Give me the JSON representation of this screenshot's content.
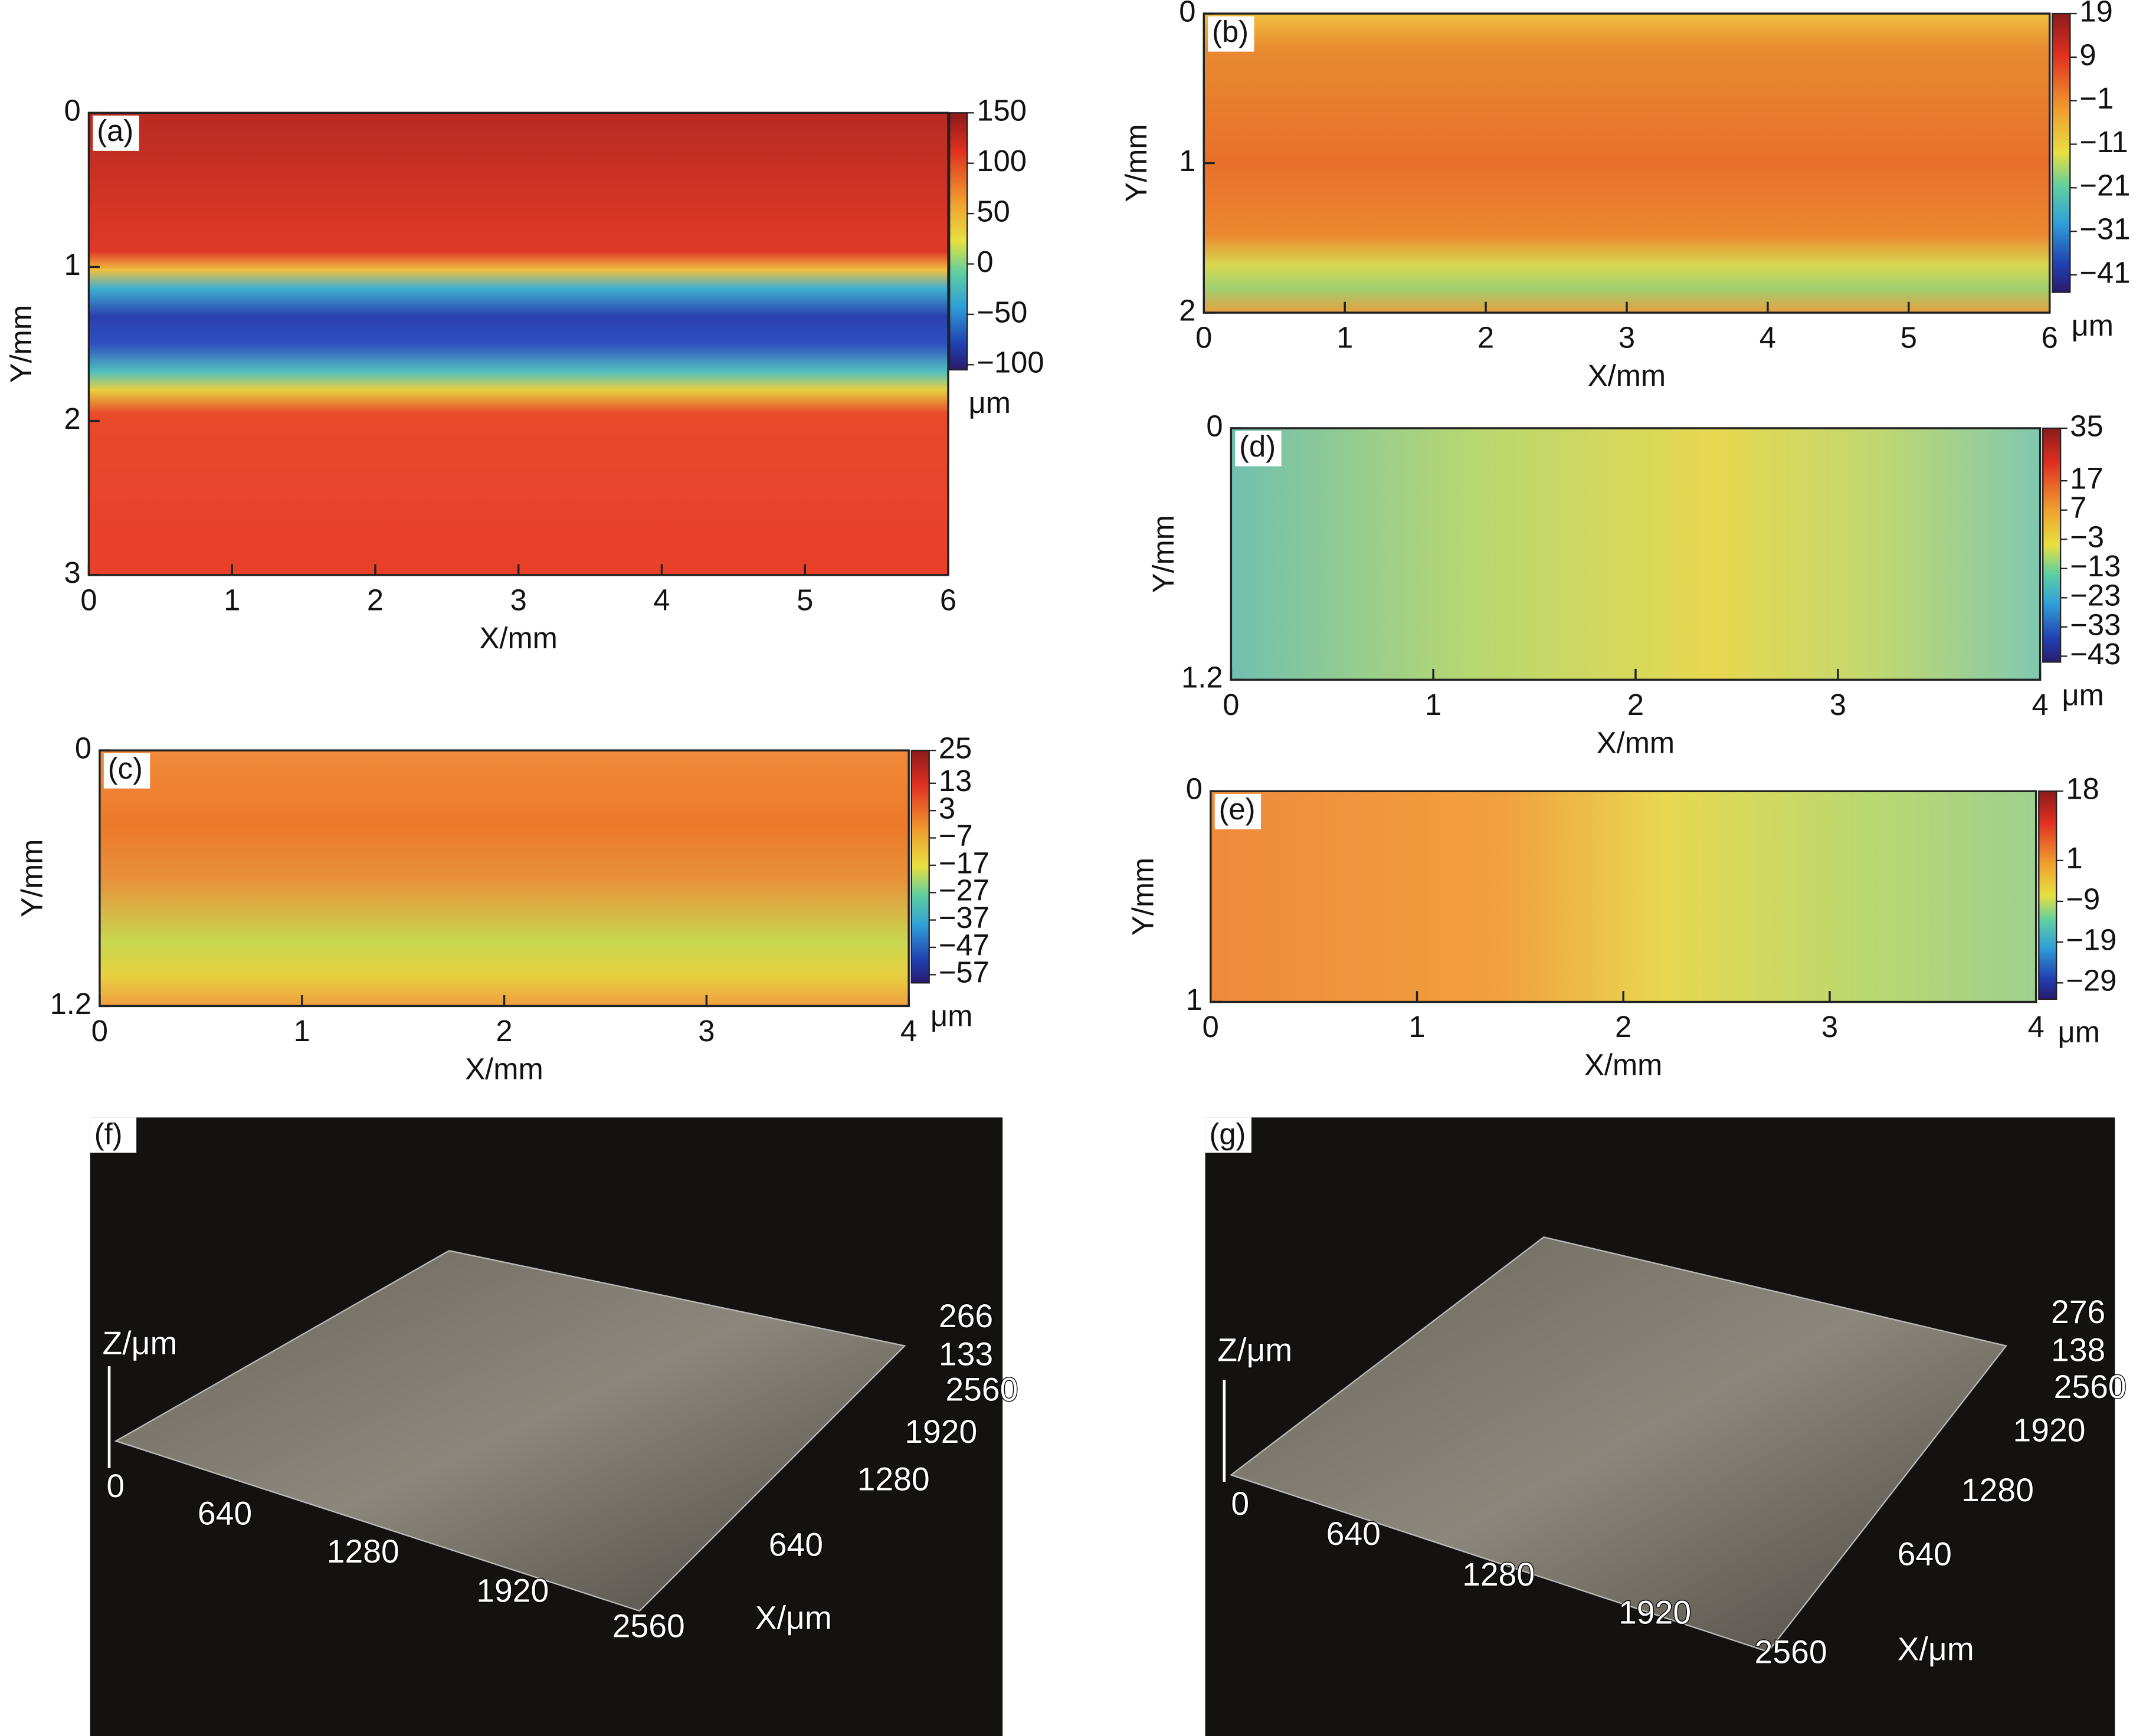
{
  "chart_data": [
    {
      "type": "heatmap",
      "label": "(a)",
      "xlabel": "X/mm",
      "ylabel": "Y/mm",
      "xlim": [
        0,
        6
      ],
      "ylim": [
        0,
        3
      ],
      "y_reversed": true,
      "xticks": [
        0,
        1,
        2,
        3,
        4,
        5,
        6
      ],
      "yticks": [
        0,
        1,
        2,
        3
      ],
      "clim": [
        -105,
        150
      ],
      "cticks": [
        150,
        100,
        50,
        0,
        {
          "value": -50,
          "label": "−50"
        },
        {
          "value": -100,
          "label": "−100"
        }
      ],
      "cunit": "μm"
    },
    {
      "type": "heatmap",
      "label": "(b)",
      "xlabel": "X/mm",
      "ylabel": "Y/mm",
      "xlim": [
        0,
        6
      ],
      "ylim": [
        0,
        2
      ],
      "y_reversed": true,
      "xticks": [
        0,
        1,
        2,
        3,
        4,
        5,
        6
      ],
      "yticks": [
        0,
        1,
        2
      ],
      "clim": [
        -45,
        19
      ],
      "cticks": [
        19,
        9,
        {
          "value": -1,
          "label": "−1"
        },
        {
          "value": -11,
          "label": "−11"
        },
        {
          "value": -21,
          "label": "−21"
        },
        {
          "value": -31,
          "label": "−31"
        },
        {
          "value": -41,
          "label": "−41"
        }
      ],
      "cunit": "μm"
    },
    {
      "type": "heatmap",
      "label": "(c)",
      "xlabel": "X/mm",
      "ylabel": "Y/mm",
      "xlim": [
        0,
        4
      ],
      "ylim": [
        0,
        1.2
      ],
      "y_reversed": true,
      "xticks": [
        0,
        1,
        2,
        3,
        4
      ],
      "yticks": [
        0,
        1.2
      ],
      "clim": [
        -60,
        25
      ],
      "cticks": [
        25,
        13,
        3,
        {
          "value": -7,
          "label": "−7"
        },
        {
          "value": -17,
          "label": "−17"
        },
        {
          "value": -27,
          "label": "−27"
        },
        {
          "value": -37,
          "label": "−37"
        },
        {
          "value": -47,
          "label": "−47"
        },
        {
          "value": -57,
          "label": "−57"
        }
      ],
      "cunit": "μm"
    },
    {
      "type": "heatmap",
      "label": "(d)",
      "xlabel": "X/mm",
      "ylabel": "Y/mm",
      "xlim": [
        0,
        4
      ],
      "ylim": [
        0,
        1.2
      ],
      "y_reversed": true,
      "xticks": [
        0,
        1,
        2,
        3,
        4
      ],
      "yticks": [
        0,
        1.2
      ],
      "clim": [
        -45,
        35
      ],
      "cticks": [
        35,
        17,
        7,
        {
          "value": -3,
          "label": "−3"
        },
        {
          "value": -13,
          "label": "−13"
        },
        {
          "value": -23,
          "label": "−23"
        },
        {
          "value": -33,
          "label": "−33"
        },
        {
          "value": -43,
          "label": "−43"
        }
      ],
      "cunit": "μm"
    },
    {
      "type": "heatmap",
      "label": "(e)",
      "xlabel": "X/mm",
      "ylabel": "Y/mm",
      "xlim": [
        0,
        4
      ],
      "ylim": [
        0,
        1
      ],
      "y_reversed": true,
      "xticks": [
        0,
        1,
        2,
        3,
        4
      ],
      "yticks": [
        0,
        1
      ],
      "clim": [
        -33,
        18
      ],
      "cticks": [
        18,
        1,
        {
          "value": -9,
          "label": "−9"
        },
        {
          "value": -19,
          "label": "−19"
        },
        {
          "value": -29,
          "label": "−29"
        }
      ],
      "cunit": "μm"
    },
    {
      "type": "surface3d",
      "label": "(f)",
      "zlabel": "Z/μm",
      "xlabel": "X/μm",
      "zticks": [
        266,
        133
      ],
      "yticks": [
        2560,
        1920,
        1280,
        640
      ],
      "xticks": [
        0,
        640,
        1280,
        1920,
        2560
      ]
    },
    {
      "type": "surface3d",
      "label": "(g)",
      "zlabel": "Z/μm",
      "xlabel": "X/μm",
      "zticks": [
        276,
        138
      ],
      "yticks": [
        2560,
        1920,
        1280,
        640
      ],
      "xticks": [
        0,
        640,
        1280,
        1920,
        2560
      ]
    }
  ]
}
